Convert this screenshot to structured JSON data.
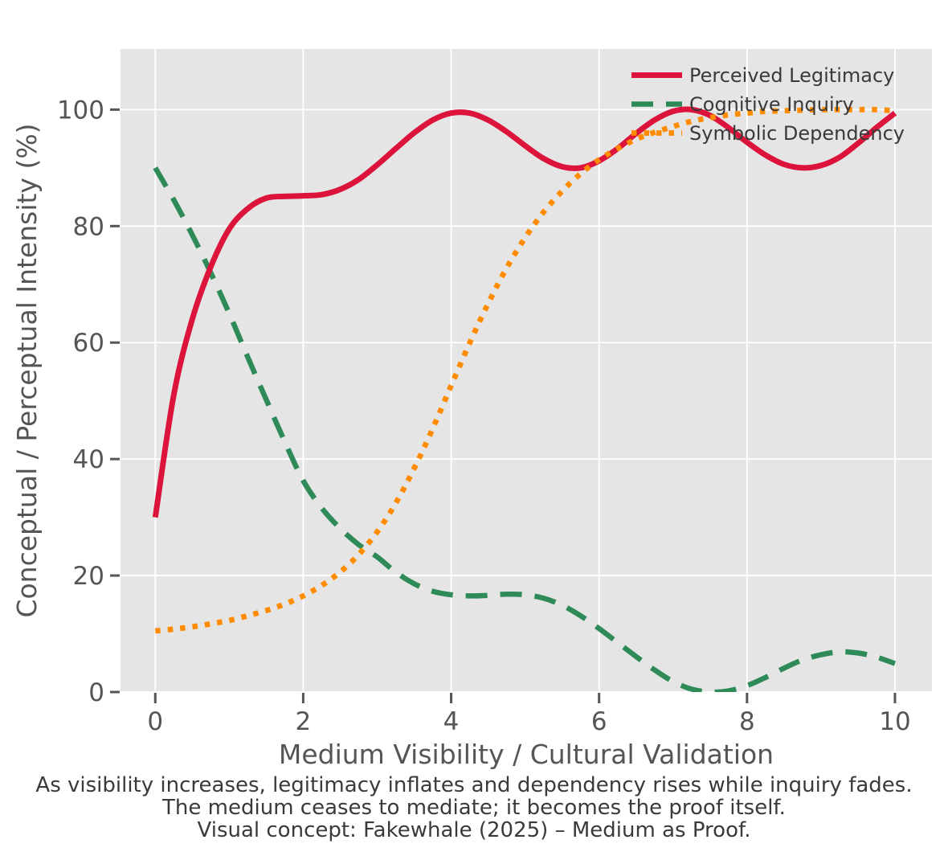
{
  "figure": {
    "background": "#ffffff",
    "plot_background": "#e5e5e5",
    "grid_color": "#ffffff",
    "tick_color": "#555555",
    "axis_label_color": "#555555",
    "caption_color": "#3a3a3a",
    "legend_text_color": "#3a3a3a"
  },
  "chart_data": {
    "type": "line",
    "title": "",
    "xlabel": "Medium Visibility / Cultural Validation",
    "ylabel": "Conceptual / Perceptual Intensity (%)",
    "xticks": [
      "0",
      "2",
      "4",
      "6",
      "8",
      "10"
    ],
    "xtick_values": [
      0,
      2,
      4,
      6,
      8,
      10
    ],
    "yticks": [
      "0",
      "20",
      "40",
      "60",
      "80",
      "100"
    ],
    "ytick_values": [
      0,
      20,
      40,
      60,
      80,
      100
    ],
    "xlim": [
      -0.47,
      10.5
    ],
    "ylim": [
      0,
      110.4
    ],
    "grid": true,
    "legend_position": "upper right",
    "legend_frame": false,
    "x": [
      0,
      0.25,
      0.5,
      0.75,
      1,
      1.25,
      1.5,
      1.75,
      2,
      2.25,
      2.5,
      2.75,
      3,
      3.25,
      3.5,
      3.75,
      4,
      4.25,
      4.5,
      4.75,
      5,
      5.25,
      5.5,
      5.75,
      6,
      6.25,
      6.5,
      6.75,
      7,
      7.25,
      7.5,
      7.75,
      8,
      8.25,
      8.5,
      8.75,
      9,
      9.25,
      9.5,
      9.75,
      10
    ],
    "series": [
      {
        "name": "Perceived Legitimacy",
        "color": "#dc143c",
        "style": "solid",
        "values": [
          30,
          51,
          64,
          73,
          79.5,
          83,
          84.8,
          85.1,
          85.2,
          85.4,
          86.3,
          88,
          90.5,
          93.3,
          96,
          98.2,
          99.4,
          99.4,
          98.2,
          96.2,
          93.8,
          91.6,
          90.2,
          90,
          91.2,
          93.3,
          95.9,
          98.2,
          99.7,
          100,
          99,
          96.9,
          94.4,
          92.2,
          90.6,
          90,
          90.4,
          91.8,
          94.2,
          96.9,
          99.4
        ]
      },
      {
        "name": "Cognitive Inquiry",
        "color": "#2e8b57",
        "style": "dashed",
        "values": [
          90,
          84.5,
          78.5,
          72,
          65,
          57.5,
          50.2,
          43,
          36.3,
          31.6,
          28.1,
          25.3,
          23.2,
          20.6,
          18.6,
          17.3,
          16.7,
          16.5,
          16.6,
          16.8,
          16.7,
          16.1,
          14.9,
          13.1,
          10.9,
          8.5,
          6.1,
          3.8,
          1.8,
          0.5,
          0,
          0.2,
          1.1,
          2.5,
          4.1,
          5.5,
          6.4,
          6.9,
          6.7,
          6,
          4.9
        ]
      },
      {
        "name": "Symbolic Dependency",
        "color": "#ff8c00",
        "style": "dotted",
        "values": [
          10.5,
          10.8,
          11.2,
          11.7,
          12.3,
          13.1,
          14,
          15.1,
          16.5,
          18.3,
          20.6,
          23.6,
          27.5,
          32.4,
          38.4,
          45.2,
          52.6,
          59.9,
          66.7,
          72.8,
          78,
          82.4,
          86,
          89,
          91.4,
          93.3,
          94.9,
          96.1,
          97.1,
          98,
          98.6,
          99.1,
          99.4,
          99.7,
          99.8,
          99.9,
          100,
          100,
          100,
          100,
          99.8
        ]
      }
    ],
    "captions": [
      "As visibility increases, legitimacy inflates and dependency rises while inquiry fades.",
      "The medium ceases to mediate; it becomes the proof itself.",
      "Visual concept: Fakewhale (2025) – Medium as Proof."
    ]
  }
}
